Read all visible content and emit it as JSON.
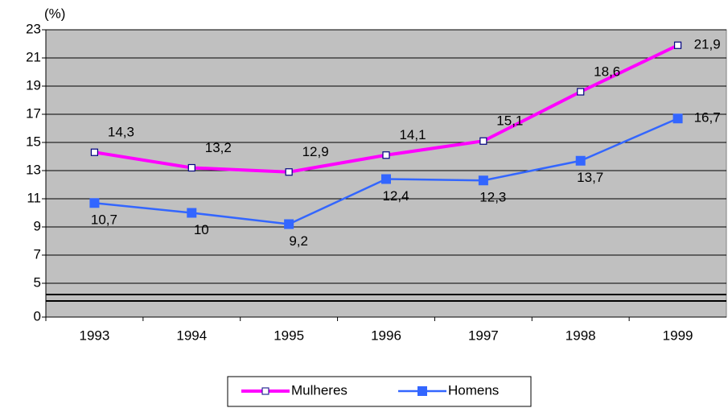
{
  "chart_data": {
    "type": "line",
    "y_unit_label": "(%)",
    "categories": [
      "1993",
      "1994",
      "1995",
      "1996",
      "1997",
      "1998",
      "1999"
    ],
    "series": [
      {
        "name": "Mulheres",
        "color": "#ff00ff",
        "marker": "hollow-square",
        "values": [
          14.3,
          13.2,
          12.9,
          14.1,
          15.1,
          18.6,
          21.9
        ],
        "value_labels": [
          "14,3",
          "13,2",
          "12,9",
          "14,1",
          "15,1",
          "18,6",
          "21,9"
        ]
      },
      {
        "name": "Homens",
        "color": "#3366ff",
        "marker": "square",
        "values": [
          10.7,
          10,
          9.2,
          12.4,
          12.3,
          13.7,
          16.7
        ],
        "value_labels": [
          "10,7",
          "10",
          "9,2",
          "12,4",
          "12,3",
          "13,7",
          "16,7"
        ]
      }
    ],
    "ylim": [
      0,
      23
    ],
    "yticks": [
      0,
      5,
      7,
      9,
      11,
      13,
      15,
      17,
      19,
      21,
      23
    ],
    "axis_break": [
      0,
      5
    ],
    "grid": true,
    "legend": "bottom"
  }
}
